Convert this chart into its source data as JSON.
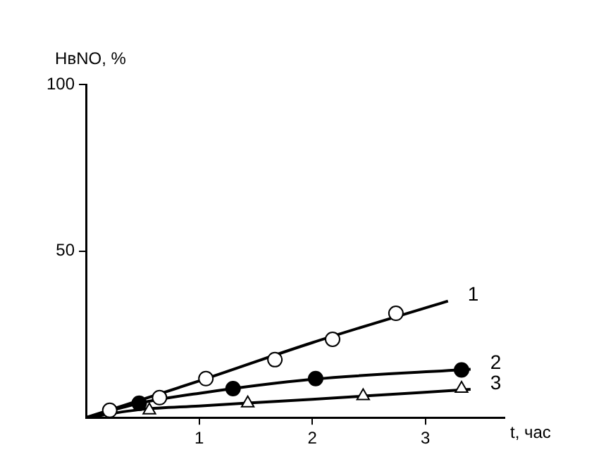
{
  "chart_data": {
    "type": "scatter",
    "xlabel": "t, час",
    "ylabel": "НвNO, %",
    "xlim": [
      0,
      3.7
    ],
    "xticks": [
      1,
      2,
      3
    ],
    "ylim": [
      0,
      100
    ],
    "yticks": [
      50,
      100
    ],
    "grid": false,
    "legend": false,
    "series": [
      {
        "name": "1",
        "marker": "circle",
        "color": "#ffffff",
        "x": [
          0.21,
          0.65,
          1.06,
          1.67,
          2.18,
          2.74
        ],
        "values": [
          2.2,
          6,
          11.7,
          17.4,
          23.5,
          31.3
        ]
      },
      {
        "type": "line",
        "marker": "none",
        "color": "#000000",
        "x": [
          0,
          1,
          2,
          3.2
        ],
        "values": [
          0,
          11,
          22.5,
          35
        ]
      },
      {
        "name": "2",
        "marker": "circle",
        "color": "#000000",
        "x": [
          0.47,
          1.3,
          2.03,
          3.32
        ],
        "values": [
          4.3,
          8.7,
          11.7,
          14.3
        ]
      },
      {
        "type": "line",
        "marker": "none",
        "color": "#000000",
        "x": [
          0,
          0.5,
          1,
          2,
          3.4
        ],
        "values": [
          0,
          4.5,
          7.3,
          11.5,
          14.5
        ]
      },
      {
        "name": "3",
        "marker": "triangle",
        "color": "#ffffff",
        "x": [
          0.56,
          1.43,
          2.45,
          3.32
        ],
        "values": [
          2.2,
          4.3,
          6.5,
          8.7
        ]
      },
      {
        "type": "line",
        "marker": "none",
        "color": "#000000",
        "x": [
          0,
          0.5,
          1,
          2,
          3.4
        ],
        "values": [
          0,
          2.5,
          3.5,
          5.5,
          8.5
        ]
      }
    ]
  }
}
